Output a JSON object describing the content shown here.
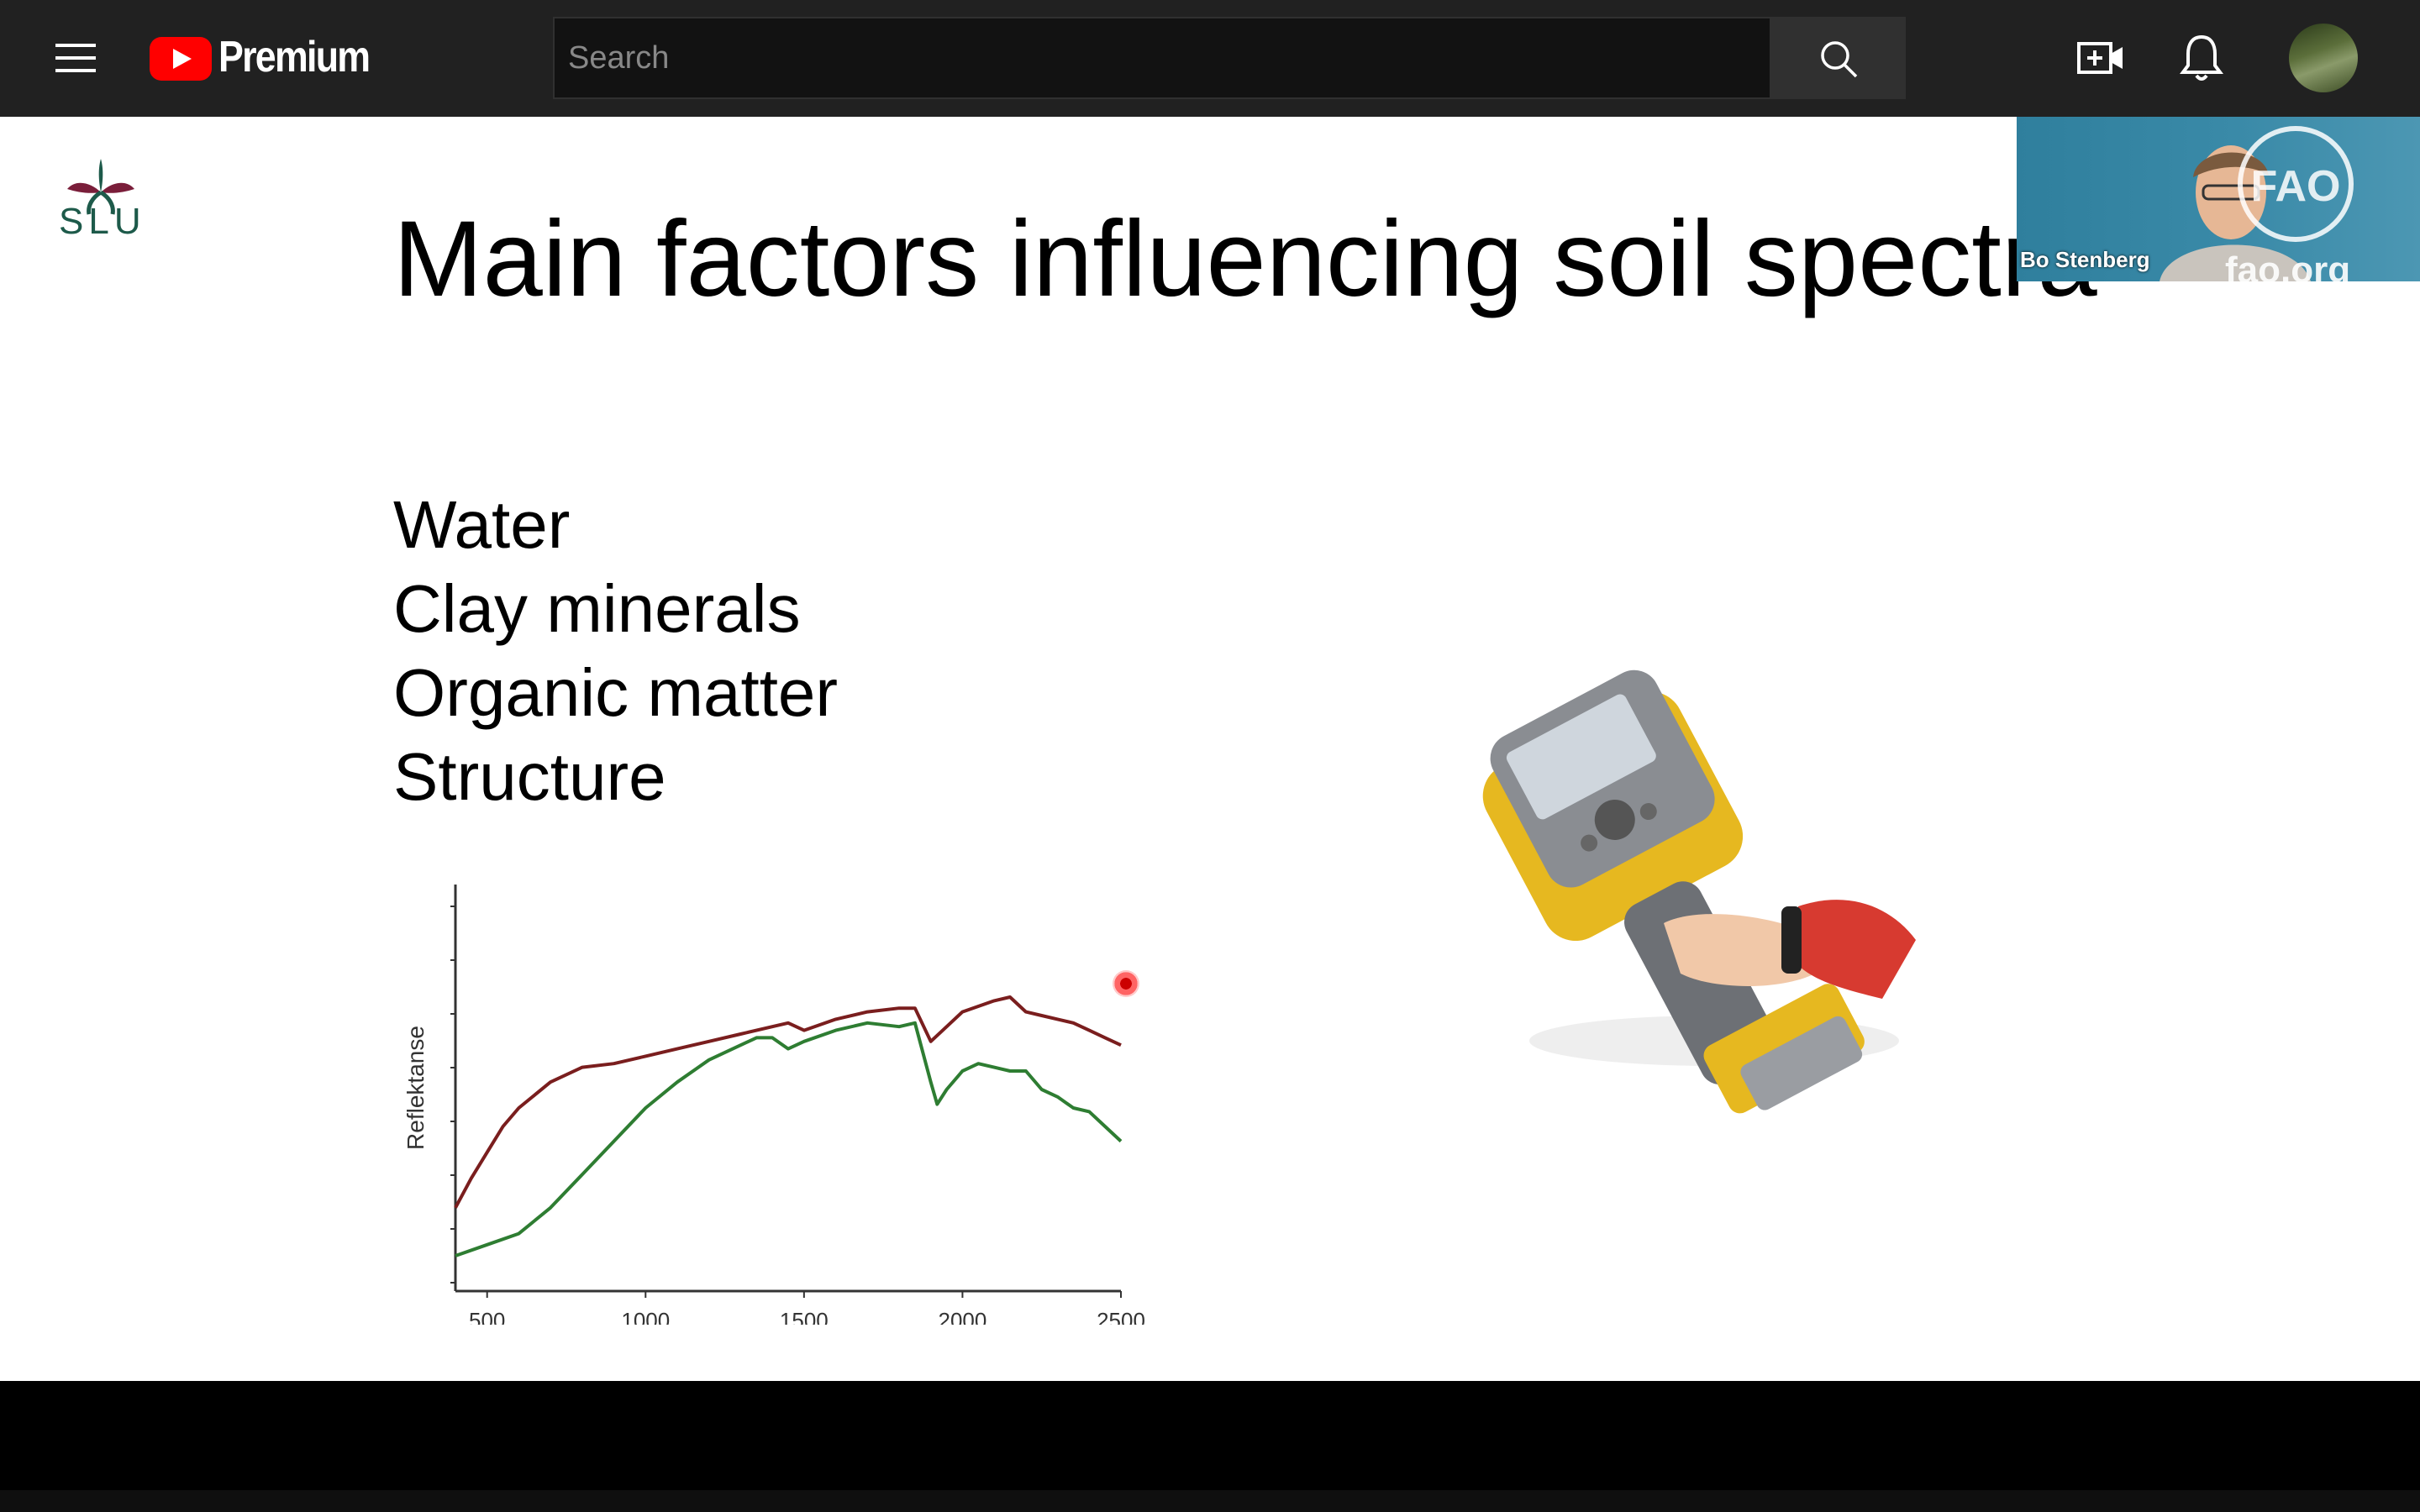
{
  "header": {
    "logo_text": "Premium",
    "search_placeholder": "Search"
  },
  "slide": {
    "logo_text": "SLU",
    "title": "Main factors influencing soil spectra",
    "factors": [
      "Water",
      "Clay minerals",
      "Organic matter",
      "Structure"
    ]
  },
  "pip": {
    "speaker_name": "Bo Stenberg",
    "url_text": "fao.org"
  },
  "chart_data": {
    "type": "line",
    "xlabel": "",
    "ylabel": "Reflektanse",
    "x_ticks": [
      500,
      1000,
      1500,
      2000,
      2500
    ],
    "xlim": [
      400,
      2500
    ],
    "grid": false,
    "series": [
      {
        "color": "#7a1e1e",
        "x": [
          400,
          450,
          500,
          550,
          600,
          700,
          800,
          900,
          1000,
          1100,
          1200,
          1300,
          1400,
          1450,
          1500,
          1600,
          1700,
          1800,
          1850,
          1900,
          1950,
          2000,
          2100,
          2150,
          2200,
          2250,
          2300,
          2350,
          2400,
          2450,
          2500
        ],
        "values": [
          0.18,
          0.26,
          0.33,
          0.4,
          0.45,
          0.52,
          0.56,
          0.57,
          0.59,
          0.61,
          0.63,
          0.65,
          0.67,
          0.68,
          0.66,
          0.69,
          0.71,
          0.72,
          0.72,
          0.63,
          0.67,
          0.71,
          0.74,
          0.75,
          0.71,
          0.7,
          0.69,
          0.68,
          0.66,
          0.64,
          0.62
        ]
      },
      {
        "color": "#2e7d32",
        "x": [
          400,
          500,
          600,
          700,
          800,
          900,
          1000,
          1100,
          1200,
          1300,
          1350,
          1400,
          1450,
          1500,
          1600,
          1700,
          1800,
          1850,
          1900,
          1920,
          1950,
          2000,
          2050,
          2100,
          2150,
          2200,
          2250,
          2300,
          2350,
          2400,
          2450,
          2500
        ],
        "values": [
          0.05,
          0.08,
          0.11,
          0.18,
          0.27,
          0.36,
          0.45,
          0.52,
          0.58,
          0.62,
          0.64,
          0.64,
          0.61,
          0.63,
          0.66,
          0.68,
          0.67,
          0.68,
          0.52,
          0.46,
          0.5,
          0.55,
          0.57,
          0.56,
          0.55,
          0.55,
          0.5,
          0.48,
          0.45,
          0.44,
          0.4,
          0.36
        ]
      }
    ]
  }
}
